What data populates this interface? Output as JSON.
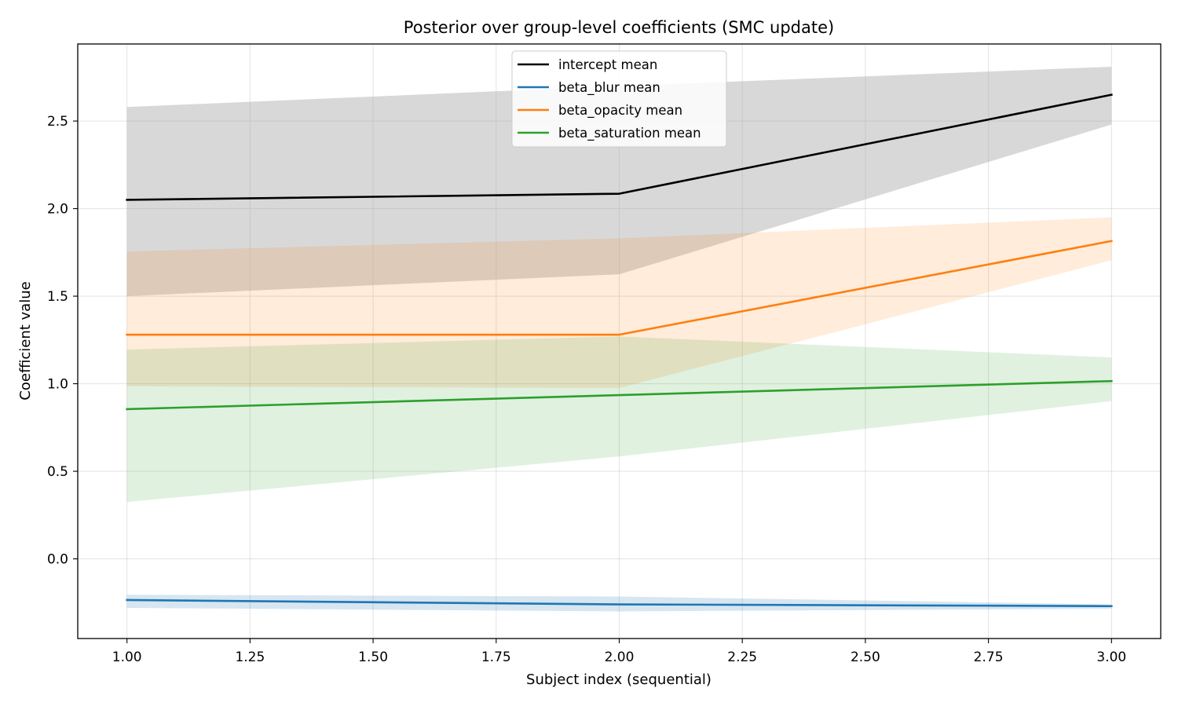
{
  "chart_data": {
    "type": "line",
    "title": "Posterior over group-level coefficients (SMC update)",
    "xlabel": "Subject index (sequential)",
    "ylabel": "Coefficient value",
    "xlim": [
      0.9,
      3.1
    ],
    "ylim": [
      -0.455,
      2.94
    ],
    "grid": true,
    "legend_position": "upper-center",
    "x": [
      1,
      2,
      3
    ],
    "xticks": [
      1.0,
      1.25,
      1.5,
      1.75,
      2.0,
      2.25,
      2.5,
      2.75,
      3.0
    ],
    "xtick_labels": [
      "1.00",
      "1.25",
      "1.50",
      "1.75",
      "2.00",
      "2.25",
      "2.50",
      "2.75",
      "3.00"
    ],
    "yticks": [
      0.0,
      0.5,
      1.0,
      1.5,
      2.0,
      2.5
    ],
    "ytick_labels": [
      "0.0",
      "0.5",
      "1.0",
      "1.5",
      "2.0",
      "2.5"
    ],
    "series": [
      {
        "key": "intercept",
        "name": "intercept mean",
        "color": "#000000",
        "band_color": "#a9a9a9",
        "band_opacity": 0.45,
        "values": [
          2.05,
          2.085,
          2.65
        ],
        "lower": [
          1.5,
          1.625,
          2.48
        ],
        "upper": [
          2.58,
          2.7,
          2.81
        ]
      },
      {
        "key": "blur",
        "name": "beta_blur mean",
        "color": "#1f77b4",
        "band_color": "#1f77b4",
        "band_opacity": 0.18,
        "values": [
          -0.235,
          -0.26,
          -0.27
        ],
        "lower": [
          -0.28,
          -0.3,
          -0.285
        ],
        "upper": [
          -0.205,
          -0.215,
          -0.26
        ]
      },
      {
        "key": "opacity",
        "name": "beta_opacity mean",
        "color": "#ff7f0e",
        "band_color": "#ff7f0e",
        "band_opacity": 0.15,
        "values": [
          1.28,
          1.28,
          1.815
        ],
        "lower": [
          0.985,
          0.975,
          1.705
        ],
        "upper": [
          1.755,
          1.83,
          1.95
        ]
      },
      {
        "key": "saturation",
        "name": "beta_saturation mean",
        "color": "#2ca02c",
        "band_color": "#2ca02c",
        "band_opacity": 0.15,
        "values": [
          0.855,
          0.935,
          1.015
        ],
        "lower": [
          0.325,
          0.585,
          0.9
        ],
        "upper": [
          1.195,
          1.27,
          1.15
        ]
      }
    ]
  }
}
